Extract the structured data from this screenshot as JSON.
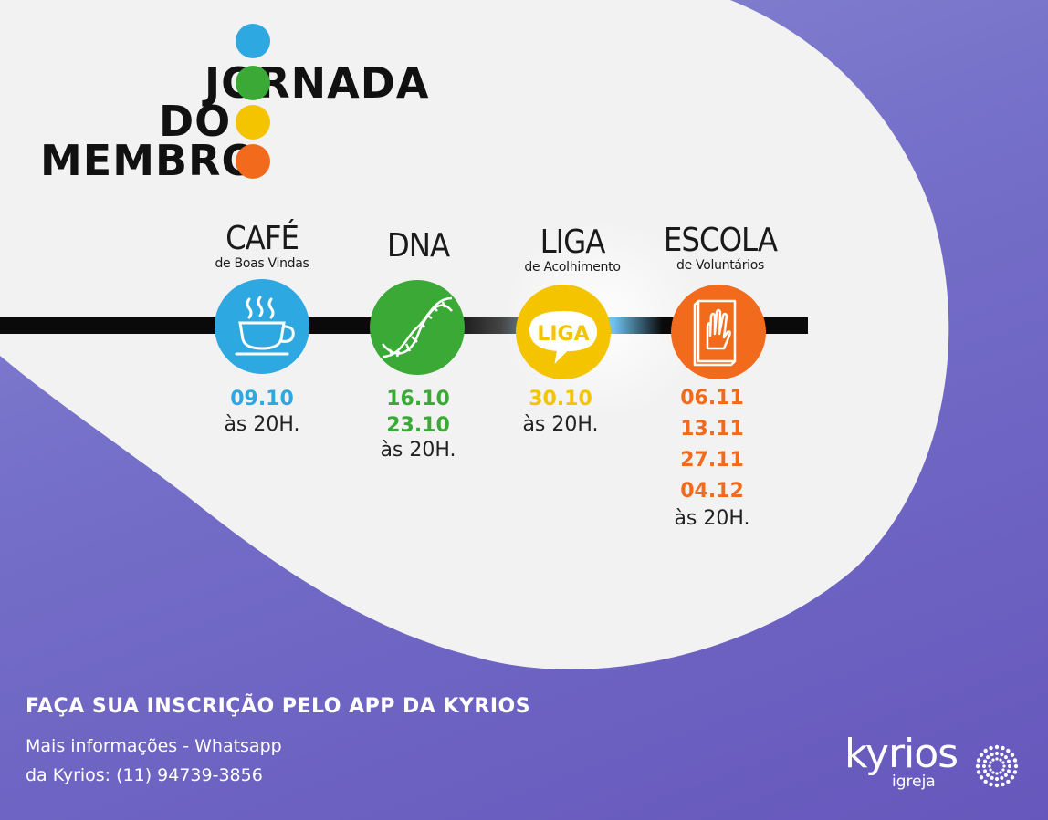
{
  "logo": {
    "line1": "JORNADA",
    "line2": "DO",
    "line3": "MEMBRO",
    "colors": {
      "blue": "#2ea8e0",
      "green": "#3aa935",
      "yellow": "#f5c400",
      "orange": "#f26b1d"
    }
  },
  "stages": [
    {
      "title": "CAFÉ",
      "subtitle": "de Boas Vindas",
      "icon": "coffee-cup-icon",
      "color": "#2ea8e0",
      "dates": [
        "09.10"
      ],
      "time": "às 20H."
    },
    {
      "title": "DNA",
      "subtitle": "",
      "icon": "dna-helix-icon",
      "color": "#3aa935",
      "dates": [
        "16.10",
        "23.10"
      ],
      "time": "às 20H."
    },
    {
      "title": "LIGA",
      "subtitle": "de Acolhimento",
      "icon": "liga-speech-bubble-icon",
      "color": "#f5c400",
      "icon_text": "LIGA",
      "dates": [
        "30.10"
      ],
      "time": "às 20H."
    },
    {
      "title": "ESCOLA",
      "subtitle": "de Voluntários",
      "icon": "hand-book-icon",
      "color": "#f26b1d",
      "dates": [
        "06.11",
        "13.11",
        "27.11",
        "04.12"
      ],
      "time": "às 20H."
    }
  ],
  "footer": {
    "cta": "FAÇA SUA INSCRIÇÃO PELO APP DA KYRIOS",
    "info_line1": "Mais informações - Whatsapp",
    "info_line2": "da Kyrios: (11) 94739-3856"
  },
  "brand": {
    "name": "kyrios",
    "sub": "igreja",
    "icon": "sunburst-logo-icon"
  }
}
